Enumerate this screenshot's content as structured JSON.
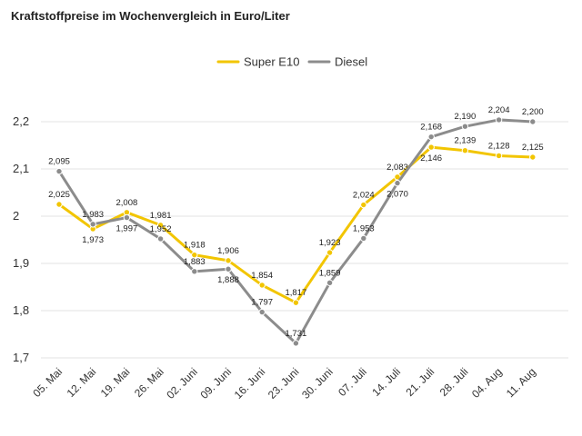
{
  "chart_data": {
    "type": "line",
    "title": "Kraftstoffpreise im Wochenvergleich in Euro/Liter",
    "xlabel": "",
    "ylabel": "",
    "categories": [
      "05. Mai",
      "12. Mai",
      "19. Mai",
      "26. Mai",
      "02. Juni",
      "09. Juni",
      "16. Juni",
      "23. Juni",
      "30. Juni",
      "07. Juli",
      "14. Juli",
      "21. Juli",
      "28. Juli",
      "04. Aug",
      "11. Aug"
    ],
    "ylim": [
      1.7,
      2.2
    ],
    "yticks": [
      1.7,
      1.8,
      1.9,
      2.0,
      2.1,
      2.2
    ],
    "ytick_labels": [
      "1,7",
      "1,8",
      "1,9",
      "2",
      "2,1",
      "2,2"
    ],
    "grid": true,
    "legend_position": "top-center",
    "series": [
      {
        "name": "Super E10",
        "color": "#f2c500",
        "values": [
          2.025,
          1.973,
          2.008,
          1.981,
          1.918,
          1.906,
          1.854,
          1.817,
          1.923,
          2.024,
          2.083,
          2.146,
          2.139,
          2.128,
          2.125
        ],
        "labels": [
          "2,025",
          "1,973",
          "2,008",
          "1,981",
          "1,918",
          "1,906",
          "1,854",
          "1,817",
          "1,923",
          "2,024",
          "2,083",
          "2,146",
          "2,139",
          "2,128",
          "2,125"
        ],
        "label_positions": [
          "above",
          "below",
          "above",
          "above",
          "above",
          "above",
          "above",
          "above",
          "above",
          "above",
          "above",
          "below",
          "above",
          "above",
          "above"
        ]
      },
      {
        "name": "Diesel",
        "color": "#8c8c8c",
        "values": [
          2.095,
          1.983,
          1.997,
          1.952,
          1.883,
          1.888,
          1.797,
          1.731,
          1.859,
          1.953,
          2.07,
          2.168,
          2.19,
          2.204,
          2.2
        ],
        "labels": [
          "2,095",
          "1,983",
          "1,997",
          "1,952",
          "1,883",
          "1,888",
          "1,797",
          "1,731",
          "1,859",
          "1,953",
          "2,070",
          "2,168",
          "2,190",
          "2,204",
          "2,200"
        ],
        "label_positions": [
          "above",
          "above",
          "below",
          "above",
          "above",
          "below",
          "above",
          "above",
          "above",
          "above",
          "below",
          "above",
          "above",
          "above",
          "above"
        ]
      }
    ]
  }
}
